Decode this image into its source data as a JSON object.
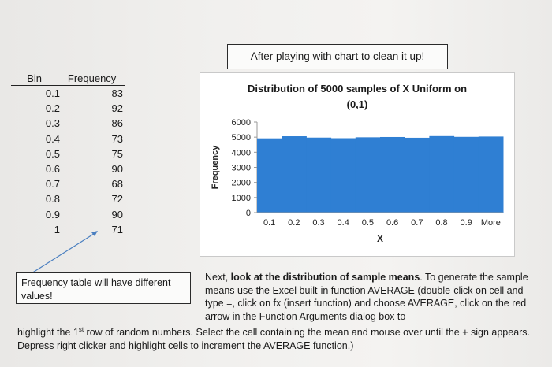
{
  "callout_top": "After playing with chart to clean it up!",
  "table": {
    "header_bin": "Bin",
    "header_freq": "Frequency",
    "rows": [
      {
        "bin": "0.1",
        "freq": "83"
      },
      {
        "bin": "0.2",
        "freq": "92"
      },
      {
        "bin": "0.3",
        "freq": "86"
      },
      {
        "bin": "0.4",
        "freq": "73"
      },
      {
        "bin": "0.5",
        "freq": "75"
      },
      {
        "bin": "0.6",
        "freq": "90"
      },
      {
        "bin": "0.7",
        "freq": "68"
      },
      {
        "bin": "0.8",
        "freq": "72"
      },
      {
        "bin": "0.9",
        "freq": "90"
      },
      {
        "bin": "1",
        "freq": "71"
      }
    ]
  },
  "chart_data": {
    "type": "bar",
    "title_line1": "Distribution of 5000 samples of  X Uniform on",
    "title_line2": "(0,1)",
    "xlabel": "X",
    "ylabel": "Frequency",
    "categories": [
      "0.1",
      "0.2",
      "0.3",
      "0.4",
      "0.5",
      "0.6",
      "0.7",
      "0.8",
      "0.9",
      "More"
    ],
    "values": [
      4920,
      5060,
      4970,
      4930,
      4990,
      5010,
      4960,
      5070,
      5020,
      5040
    ],
    "yticks": [
      "0",
      "1000",
      "2000",
      "3000",
      "4000",
      "5000",
      "6000"
    ],
    "ylim": [
      0,
      6000
    ],
    "bar_color": "#2f7fd3",
    "grid": false,
    "legend": "none"
  },
  "callout_left": "Frequency table will have different values!",
  "para1": {
    "pre": "Next, ",
    "bold": "look at the distribution of sample means",
    "post": ". To generate the sample means use the Excel built-in function AVERAGE (double-click on cell and type =,  click on fx (insert function) and choose AVERAGE, click on the red arrow in the Function Arguments dialog box to"
  },
  "para2": {
    "pre": "highlight the 1",
    "sup": "st",
    "post": " row of random numbers. Select the cell containing the mean and mouse over until the + sign appears. Depress right clicker and highlight cells to increment the AVERAGE function.)"
  }
}
